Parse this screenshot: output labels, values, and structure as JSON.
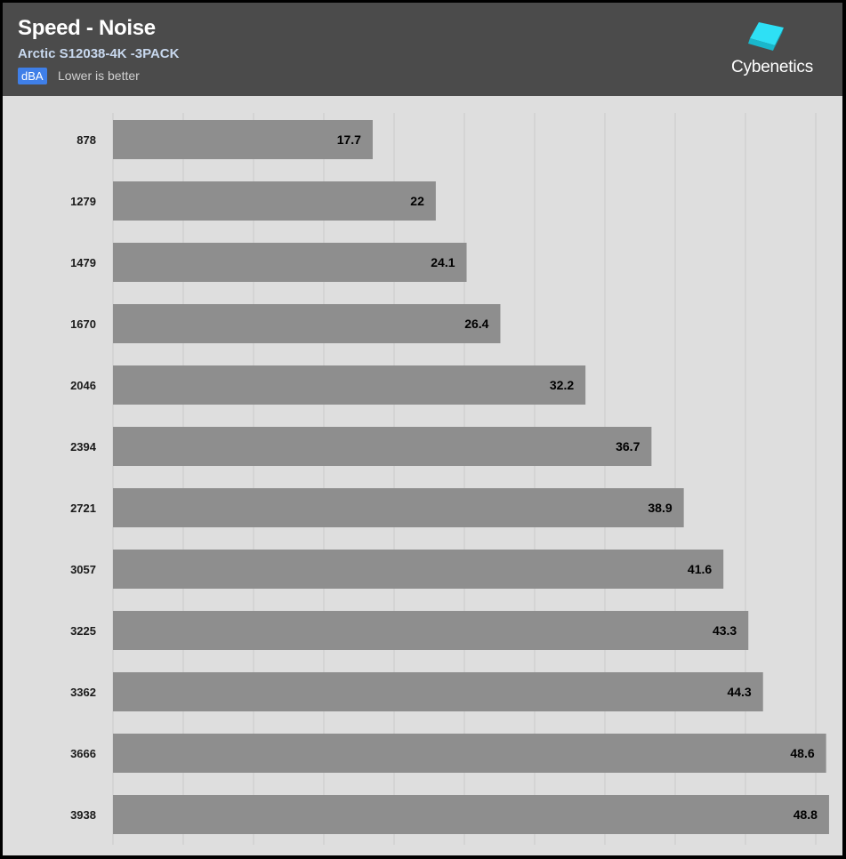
{
  "header": {
    "title": "Speed - Noise",
    "subtitle": "Arctic S12038-4K -3PACK",
    "unit": "dBA",
    "note": "Lower is better",
    "logo_text": "Cybenetics",
    "logo_icon": "cube-logo-icon"
  },
  "colors": {
    "header_bg": "#4b4b4b",
    "plot_bg": "#dedede",
    "bar": "#8e8e8e",
    "unit_badge": "#3f7fe8",
    "logo_cube": "#2ee0f5"
  },
  "chart_data": {
    "type": "bar",
    "orientation": "horizontal",
    "categories": [
      "878",
      "1279",
      "1479",
      "1670",
      "2046",
      "2394",
      "2721",
      "3057",
      "3225",
      "3362",
      "3666",
      "3938"
    ],
    "values": [
      17.7,
      22,
      24.1,
      26.4,
      32.2,
      36.7,
      38.9,
      41.6,
      43.3,
      44.3,
      48.6,
      48.8
    ],
    "xlim": [
      0,
      48.5
    ],
    "grid": true,
    "legend": "none",
    "title": "Speed - Noise",
    "subtitle": "Arctic S12038-4K -3PACK",
    "unit": "dBA",
    "xlabel": "",
    "ylabel": ""
  }
}
